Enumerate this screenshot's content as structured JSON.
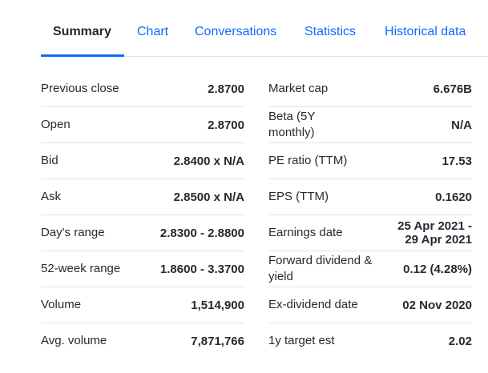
{
  "tabs": [
    {
      "label": "Summary",
      "active": true
    },
    {
      "label": "Chart",
      "active": false
    },
    {
      "label": "Conversations",
      "active": false
    },
    {
      "label": "Statistics",
      "active": false
    },
    {
      "label": "Historical data",
      "active": false
    }
  ],
  "colors": {
    "accent": "#0f69ff",
    "text": "#232a31",
    "divider": "#e0e4e9"
  },
  "left_rows": [
    {
      "label": "Previous close",
      "value": "2.8700"
    },
    {
      "label": "Open",
      "value": "2.8700"
    },
    {
      "label": "Bid",
      "value": "2.8400 x N/A"
    },
    {
      "label": "Ask",
      "value": "2.8500 x N/A"
    },
    {
      "label": "Day's range",
      "value": "2.8300 - 2.8800"
    },
    {
      "label": "52-week range",
      "value": "1.8600 - 3.3700"
    },
    {
      "label": "Volume",
      "value": "1,514,900"
    },
    {
      "label": "Avg. volume",
      "value": "7,871,766"
    }
  ],
  "right_rows": [
    {
      "label": "Market cap",
      "value": "6.676B"
    },
    {
      "label": "Beta (5Y monthly)",
      "value": "N/A"
    },
    {
      "label": "PE ratio (TTM)",
      "value": "17.53"
    },
    {
      "label": "EPS (TTM)",
      "value": "0.1620"
    },
    {
      "label": "Earnings date",
      "value": "25 Apr 2021 - 29 Apr 2021"
    },
    {
      "label": "Forward dividend & yield",
      "value": "0.12 (4.28%)"
    },
    {
      "label": "Ex-dividend date",
      "value": "02 Nov 2020"
    },
    {
      "label": "1y target est",
      "value": "2.02"
    }
  ]
}
